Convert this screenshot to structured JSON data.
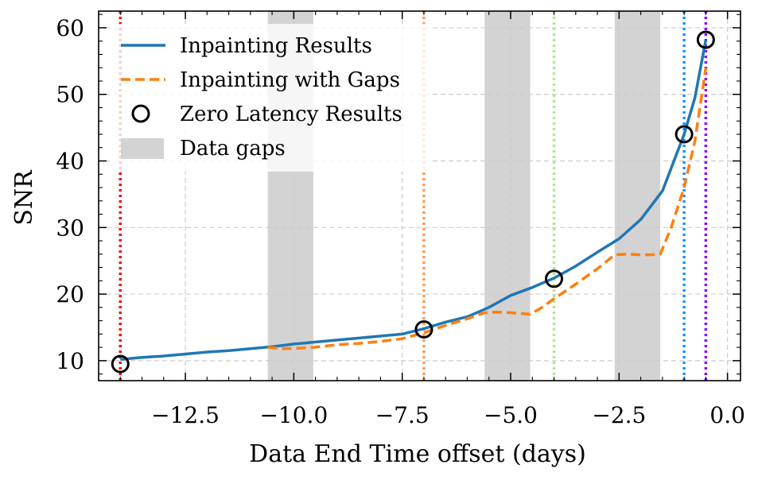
{
  "chart_data": {
    "type": "line",
    "xlabel": "Data End Time offset (days)",
    "ylabel": "SNR",
    "xlim": [
      -14.5,
      0.3
    ],
    "ylim": [
      7,
      62.5
    ],
    "xticks": [
      -12.5,
      -10.0,
      -7.5,
      -5.0,
      -2.5,
      0.0
    ],
    "xtick_labels": [
      "−12.5",
      "−10.0",
      "−7.5",
      "−5.0",
      "−2.5",
      "0.0"
    ],
    "yticks": [
      10,
      20,
      30,
      40,
      50,
      60
    ],
    "ytick_labels": [
      "10",
      "20",
      "30",
      "40",
      "50",
      "60"
    ],
    "grid": true,
    "legend_position": "top-left",
    "legend": {
      "inpainting": "Inpainting Results",
      "gaps": "Inpainting with Gaps",
      "zero_latency": "Zero Latency Results",
      "data_gaps": "Data gaps"
    },
    "colors": {
      "inpainting": "#1f77b4",
      "gaps": "#ff7f0e",
      "gap_fill": "#d3d3d3",
      "markers": "#000000"
    },
    "gap_regions": [
      [
        -10.6,
        -9.55
      ],
      [
        -5.6,
        -4.55
      ],
      [
        -2.6,
        -1.55
      ]
    ],
    "vertical_lines": [
      {
        "x": -14.0,
        "color": "#ff0000"
      },
      {
        "x": -7.0,
        "color": "#ff9955"
      },
      {
        "x": -4.0,
        "color": "#b4e68c"
      },
      {
        "x": -1.0,
        "color": "#1e90ff"
      },
      {
        "x": -0.5,
        "color": "#8a00ff"
      }
    ],
    "series": [
      {
        "name": "Inpainting Results",
        "style": "solid",
        "x": [
          -14.0,
          -13.5,
          -13.0,
          -12.5,
          -12.0,
          -11.5,
          -11.0,
          -10.5,
          -10.0,
          -9.5,
          -9.0,
          -8.5,
          -8.0,
          -7.5,
          -7.0,
          -6.5,
          -6.0,
          -5.5,
          -5.0,
          -4.5,
          -4.0,
          -3.5,
          -3.0,
          -2.5,
          -2.0,
          -1.5,
          -1.0,
          -0.75,
          -0.5
        ],
        "y": [
          10.2,
          10.5,
          10.7,
          11.0,
          11.3,
          11.5,
          11.8,
          12.1,
          12.5,
          12.8,
          13.1,
          13.4,
          13.7,
          14.0,
          14.8,
          15.8,
          16.6,
          18.0,
          19.8,
          21.0,
          22.4,
          24.2,
          26.3,
          28.3,
          31.2,
          35.5,
          44.0,
          49.5,
          58.2
        ]
      },
      {
        "name": "Inpainting with Gaps",
        "style": "dashed",
        "x": [
          -10.6,
          -10.2,
          -9.8,
          -9.55,
          -9.0,
          -8.5,
          -8.0,
          -7.5,
          -7.0,
          -6.5,
          -6.0,
          -5.6,
          -5.3,
          -5.0,
          -4.8,
          -4.55,
          -4.3,
          -4.0,
          -3.5,
          -3.0,
          -2.6,
          -2.3,
          -2.0,
          -1.8,
          -1.55,
          -1.3,
          -1.0,
          -0.75,
          -0.5
        ],
        "y": [
          12.0,
          11.8,
          11.9,
          12.0,
          12.4,
          12.6,
          12.9,
          13.3,
          14.2,
          15.3,
          16.3,
          17.2,
          17.3,
          17.2,
          17.1,
          17.0,
          17.9,
          19.3,
          21.5,
          23.8,
          25.9,
          26.0,
          25.9,
          25.9,
          26.0,
          30.0,
          36.0,
          43.0,
          54.0
        ]
      }
    ],
    "zero_latency_points": {
      "name": "Zero Latency Results",
      "x": [
        -14.0,
        -7.0,
        -4.0,
        -1.0,
        -0.5
      ],
      "y": [
        9.5,
        14.7,
        22.3,
        44.0,
        58.2
      ]
    }
  }
}
